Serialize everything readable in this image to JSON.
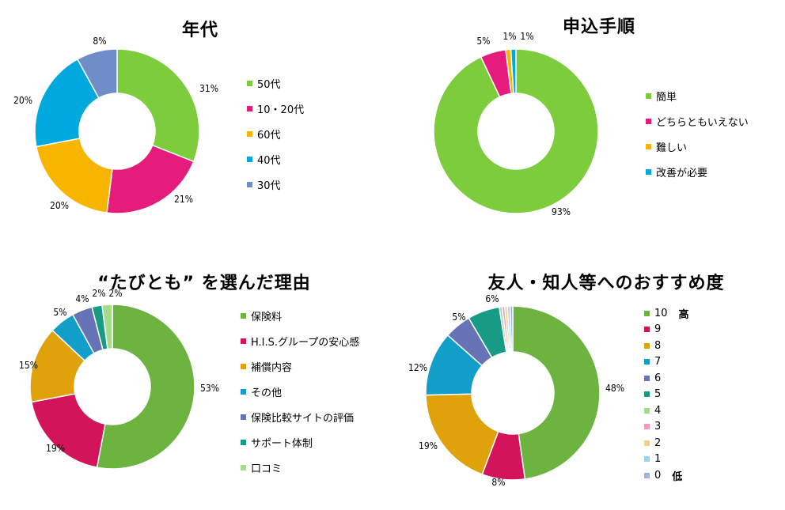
{
  "chart_data": [
    {
      "type": "pie",
      "title": "年代",
      "categories": [
        "50代",
        "10・20代",
        "60代",
        "40代",
        "30代"
      ],
      "values": [
        31,
        21,
        20,
        20,
        8
      ],
      "labels": [
        "31%",
        "21%",
        "20%",
        "20%",
        "8%"
      ],
      "colors": [
        "#7CCC3C",
        "#E61C7C",
        "#F7B500",
        "#00A9DD",
        "#6F8DC8"
      ],
      "legend_notes": [
        "",
        "",
        "",
        "",
        ""
      ],
      "legend": "right"
    },
    {
      "type": "pie",
      "title": "申込手順",
      "categories": [
        "簡単",
        "どちらともいえない",
        "難しい",
        "改善が必要"
      ],
      "values": [
        93,
        5,
        1,
        1
      ],
      "labels": [
        "93%",
        "5%",
        "1%",
        "1%"
      ],
      "colors": [
        "#7CCC3C",
        "#E61C7C",
        "#F7B500",
        "#00A9DD"
      ],
      "legend_notes": [
        "",
        "",
        "",
        ""
      ],
      "legend": "right"
    },
    {
      "type": "pie",
      "title": "“たびとも” を選んだ理由",
      "categories": [
        "保険料",
        "H.I.S.グループの安心感",
        "補償内容",
        "その他",
        "保険比較サイトの評価",
        "サポート体制",
        "口コミ"
      ],
      "values": [
        53,
        19,
        15,
        5,
        4,
        2,
        2
      ],
      "labels": [
        "53%",
        "19%",
        "15%",
        "5%",
        "4%",
        "2%",
        "2%"
      ],
      "colors": [
        "#6DB33F",
        "#D4145A",
        "#E0A20B",
        "#119EC9",
        "#6673B6",
        "#189B86",
        "#A6DB8C"
      ],
      "legend_notes": [
        "",
        "",
        "",
        "",
        "",
        "",
        ""
      ],
      "legend": "right"
    },
    {
      "type": "pie",
      "title": "友人・知人等へのおすすめ度",
      "categories": [
        "10",
        "9",
        "8",
        "7",
        "6",
        "5",
        "4",
        "3",
        "2",
        "1",
        "0"
      ],
      "values": [
        48,
        8,
        19,
        12,
        5,
        6,
        0.5,
        0.5,
        0.5,
        0.5,
        0.5
      ],
      "labels": [
        "48%",
        "8%",
        "19%",
        "12%",
        "5%",
        "6%",
        "",
        "",
        "",
        "",
        ""
      ],
      "colors": [
        "#6DB33F",
        "#D4145A",
        "#E0A20B",
        "#119EC9",
        "#6673B6",
        "#189B86",
        "#A6DB8C",
        "#F39AC4",
        "#F8CF8A",
        "#9ED2EE",
        "#A4B0DC"
      ],
      "legend_notes": [
        "高",
        "",
        "",
        "",
        "",
        "",
        "",
        "",
        "",
        "",
        "低"
      ],
      "legend": "right"
    }
  ]
}
